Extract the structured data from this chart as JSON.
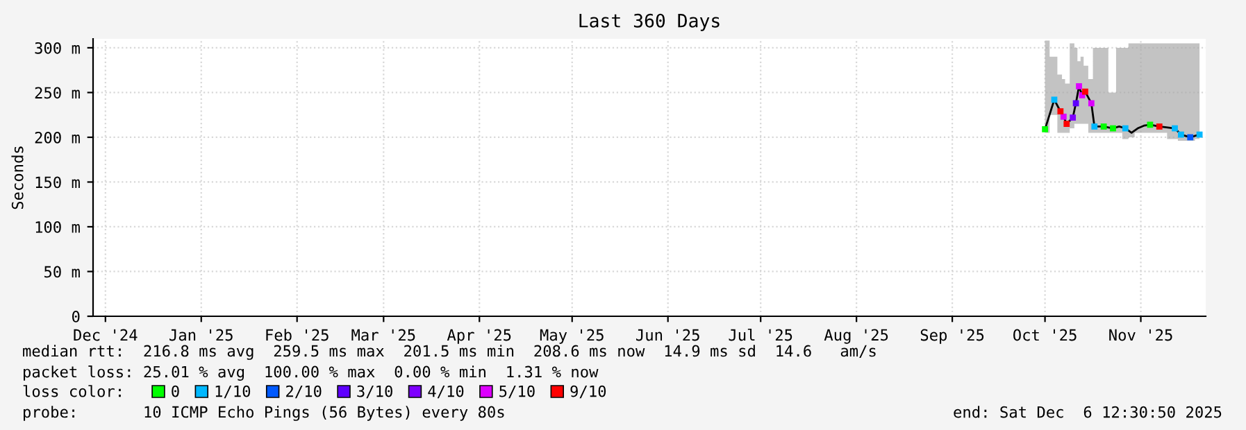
{
  "chart_data": {
    "type": "line",
    "title": "Last 360 Days",
    "ylabel": "Seconds",
    "xlim": [
      "2024-12-11",
      "2025-12-06"
    ],
    "xticks": [
      {
        "value": "2024-12-15",
        "label": "Dec '24"
      },
      {
        "value": "2025-01-15",
        "label": "Jan '25"
      },
      {
        "value": "2025-02-15",
        "label": "Feb '25"
      },
      {
        "value": "2025-03-15",
        "label": "Mar '25"
      },
      {
        "value": "2025-04-15",
        "label": "Apr '25"
      },
      {
        "value": "2025-05-15",
        "label": "May '25"
      },
      {
        "value": "2025-06-15",
        "label": "Jun '25"
      },
      {
        "value": "2025-07-15",
        "label": "Jul '25"
      },
      {
        "value": "2025-08-15",
        "label": "Aug '25"
      },
      {
        "value": "2025-09-15",
        "label": "Sep '25"
      },
      {
        "value": "2025-10-15",
        "label": "Oct '25"
      },
      {
        "value": "2025-11-15",
        "label": "Nov '25"
      }
    ],
    "ylim": [
      0,
      310
    ],
    "yticks": [
      0,
      {
        "value": 50,
        "label": "50 m"
      },
      {
        "value": 100,
        "label": "100 m"
      },
      {
        "value": 150,
        "label": "150 m"
      },
      {
        "value": 200,
        "label": "200 m"
      },
      {
        "value": 250,
        "label": "250 m"
      },
      {
        "value": 300,
        "label": "300 m"
      }
    ],
    "grid": true,
    "legend": "bottom",
    "legend_title": "loss color:",
    "series": [
      {
        "color": "#000000",
        "x": [
          "2025-10-15",
          "2025-10-18",
          "2025-10-20",
          "2025-10-21",
          "2025-10-22",
          "2025-10-24",
          "2025-10-25",
          "2025-10-26",
          "2025-10-27",
          "2025-10-28",
          "2025-10-30",
          "2025-10-31",
          "2025-11-03",
          "2025-11-06",
          "2025-11-08",
          "2025-11-10",
          "2025-11-12",
          "2025-11-14",
          "2025-11-16",
          "2025-11-18",
          "2025-11-21",
          "2025-11-26",
          "2025-11-28",
          "2025-12-01",
          "2025-12-04"
        ],
        "values": [
          209,
          242,
          229,
          223,
          215,
          222,
          238,
          257,
          247,
          251,
          238,
          212,
          212,
          210,
          212,
          210,
          205,
          210,
          213,
          214,
          212,
          210,
          203,
          200,
          203
        ],
        "lower": [
          205,
          225,
          205,
          205,
          205,
          210,
          215,
          215,
          215,
          215,
          205,
          205,
          205,
          205,
          205,
          198,
          200,
          205,
          205,
          205,
          205,
          198,
          196,
          196,
          198
        ],
        "upper": [
          308,
          290,
          270,
          265,
          260,
          305,
          300,
          285,
          290,
          280,
          265,
          300,
          300,
          250,
          300,
          300,
          305,
          305,
          305,
          305,
          305,
          305,
          305,
          305,
          305
        ]
      },
      {
        "type": "scatter",
        "name": "0",
        "color": "#00ff00",
        "x": [
          "2025-10-15",
          "2025-11-03",
          "2025-11-06",
          "2025-11-18"
        ],
        "values": [
          209,
          212,
          210,
          214
        ]
      },
      {
        "type": "scatter",
        "name": "1/10",
        "color": "#00b8ff",
        "x": [
          "2025-10-18",
          "2025-10-31",
          "2025-11-10",
          "2025-11-26",
          "2025-11-28",
          "2025-12-04"
        ],
        "values": [
          242,
          212,
          210,
          210,
          203,
          203
        ]
      },
      {
        "type": "scatter",
        "name": "2/10",
        "color": "#0059ff",
        "x": [
          "2025-12-01"
        ],
        "values": [
          200
        ]
      },
      {
        "type": "scatter",
        "name": "3/10",
        "color": "#5e00ff",
        "x": [
          "2025-10-25"
        ],
        "values": [
          238
        ]
      },
      {
        "type": "scatter",
        "name": "4/10",
        "color": "#7e00ff",
        "x": [
          "2025-10-24"
        ],
        "values": [
          222
        ]
      },
      {
        "type": "scatter",
        "name": "5/10",
        "color": "#dd00ff",
        "x": [
          "2025-10-21",
          "2025-10-26",
          "2025-10-27",
          "2025-10-30"
        ],
        "values": [
          223,
          257,
          247,
          238
        ]
      },
      {
        "type": "scatter",
        "name": "9/10",
        "color": "#ff0000",
        "x": [
          "2025-10-20",
          "2025-10-22",
          "2025-10-28",
          "2025-11-21"
        ],
        "values": [
          229,
          215,
          251,
          212
        ]
      }
    ],
    "annotations": [
      "median rtt:  216.8 ms avg  259.5 ms max  201.5 ms min  208.6 ms now  14.9 ms sd  14.6   am/s",
      "packet loss: 25.01 % avg  100.00 % max  0.00 % min  1.31 % now",
      "probe:       10 ICMP Echo Pings (56 Bytes) every 80s",
      "end: Sat Dec  6 12:30:50 2025"
    ]
  }
}
